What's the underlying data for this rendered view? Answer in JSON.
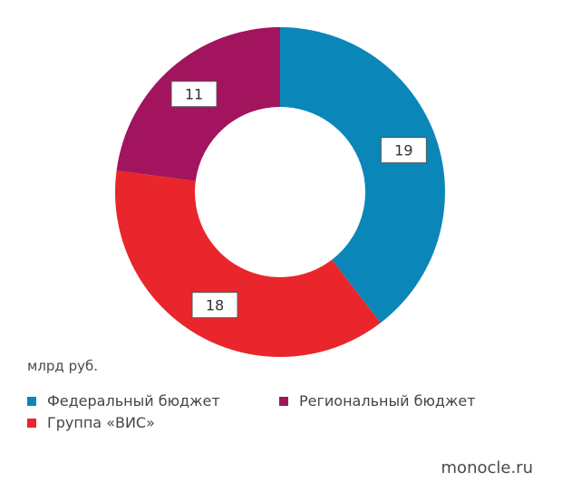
{
  "chart_data": {
    "type": "pie",
    "variant": "donut",
    "unit": "млрд руб.",
    "categories": [
      "Федеральный бюджет",
      "Группа «ВИС»",
      "Региональный бюджет"
    ],
    "values": [
      19,
      18,
      11
    ],
    "colors": [
      "#0a87b8",
      "#e8262b",
      "#a3145f"
    ],
    "start_angle_deg": 0,
    "direction": "clockwise",
    "legend_placement": "bottom",
    "data_labels": [
      "19",
      "18",
      "11"
    ]
  },
  "legend": {
    "items": [
      {
        "label": "Федеральный бюджет",
        "color": "#0a87b8"
      },
      {
        "label": "Региональный бюджет",
        "color": "#a3145f"
      },
      {
        "label": "Группа «ВИС»",
        "color": "#e8262b"
      }
    ]
  },
  "unit_label": "млрд руб.",
  "source": "monocle.ru"
}
